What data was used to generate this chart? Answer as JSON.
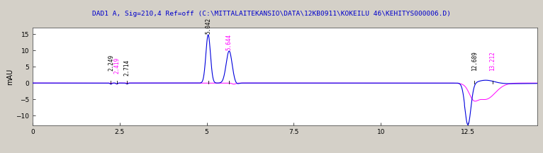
{
  "title": "DAD1 A, Sig=210,4 Ref=off (C:\\MITTALAITEKANSIO\\DATA\\12KB0911\\KOKEILU 46\\KEHITYS000006.D)",
  "title_color": "#0000cc",
  "bg_color": "#d4d0c8",
  "plot_bg_color": "#ffffff",
  "ylabel": "mAU",
  "xlim": [
    0,
    14.5
  ],
  "ylim": [
    -13,
    17
  ],
  "yticks": [
    -10,
    -5,
    0,
    5,
    10,
    15
  ],
  "xticks": [
    0,
    2.5,
    5.0,
    7.5,
    10.0,
    12.5
  ],
  "xtick_labels": [
    "0",
    "2.5",
    "5",
    "7.5",
    "10",
    "12.5"
  ],
  "line_color_blue": "#0000dd",
  "line_color_black": "#000000",
  "line_color_magenta": "#ff00ff",
  "label_configs": [
    {
      "x": 2.249,
      "y_top": 3.8,
      "label": "2.249",
      "color": "#000000"
    },
    {
      "x": 2.419,
      "y_top": 2.8,
      "label": "2.419",
      "color": "#ff00ff"
    },
    {
      "x": 2.714,
      "y_top": 2.2,
      "label": "2.714",
      "color": "#000000"
    },
    {
      "x": 5.042,
      "y_top": 15.0,
      "label": "5.042",
      "color": "#000000"
    },
    {
      "x": 5.644,
      "y_top": 10.0,
      "label": "5.644",
      "color": "#ff00ff"
    },
    {
      "x": 12.689,
      "y_top": 3.8,
      "label": "12.689",
      "color": "#000000"
    },
    {
      "x": 13.212,
      "y_top": 3.8,
      "label": "13.212",
      "color": "#ff00ff"
    }
  ]
}
